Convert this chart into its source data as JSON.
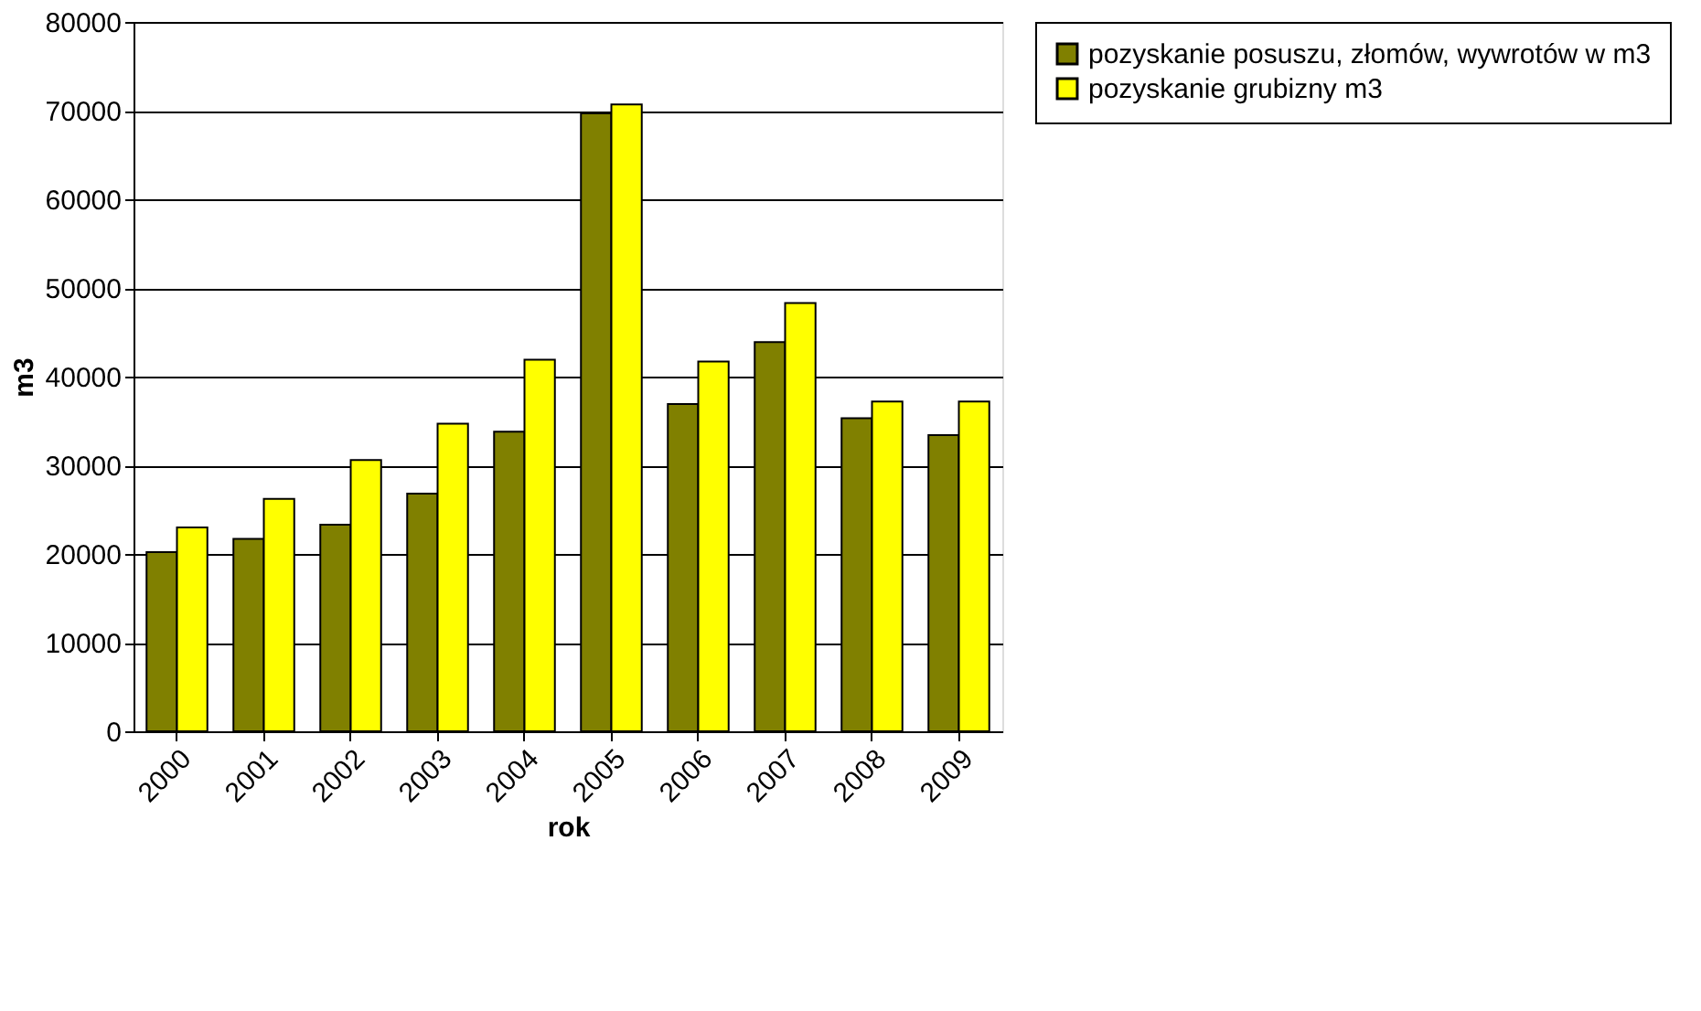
{
  "chart_data": {
    "type": "bar",
    "xlabel": "rok",
    "ylabel": "m3",
    "categories": [
      "2000",
      "2001",
      "2002",
      "2003",
      "2004",
      "2005",
      "2006",
      "2007",
      "2008",
      "2009"
    ],
    "series": [
      {
        "name": "pozyskanie posuszu, złomów, wywrotów w m3",
        "color": "#808000",
        "values": [
          20200,
          21700,
          23300,
          26800,
          33800,
          69700,
          36900,
          43900,
          35300,
          33400
        ]
      },
      {
        "name": "pozyskanie grubizny m3",
        "color": "#ffff00",
        "values": [
          23000,
          26200,
          30600,
          34700,
          41900,
          70700,
          41700,
          48300,
          37200,
          37200
        ]
      }
    ],
    "ylim": [
      0,
      80000
    ],
    "yticks": [
      0,
      10000,
      20000,
      30000,
      40000,
      50000,
      60000,
      70000,
      80000
    ],
    "grid": "y",
    "legend": "right"
  }
}
